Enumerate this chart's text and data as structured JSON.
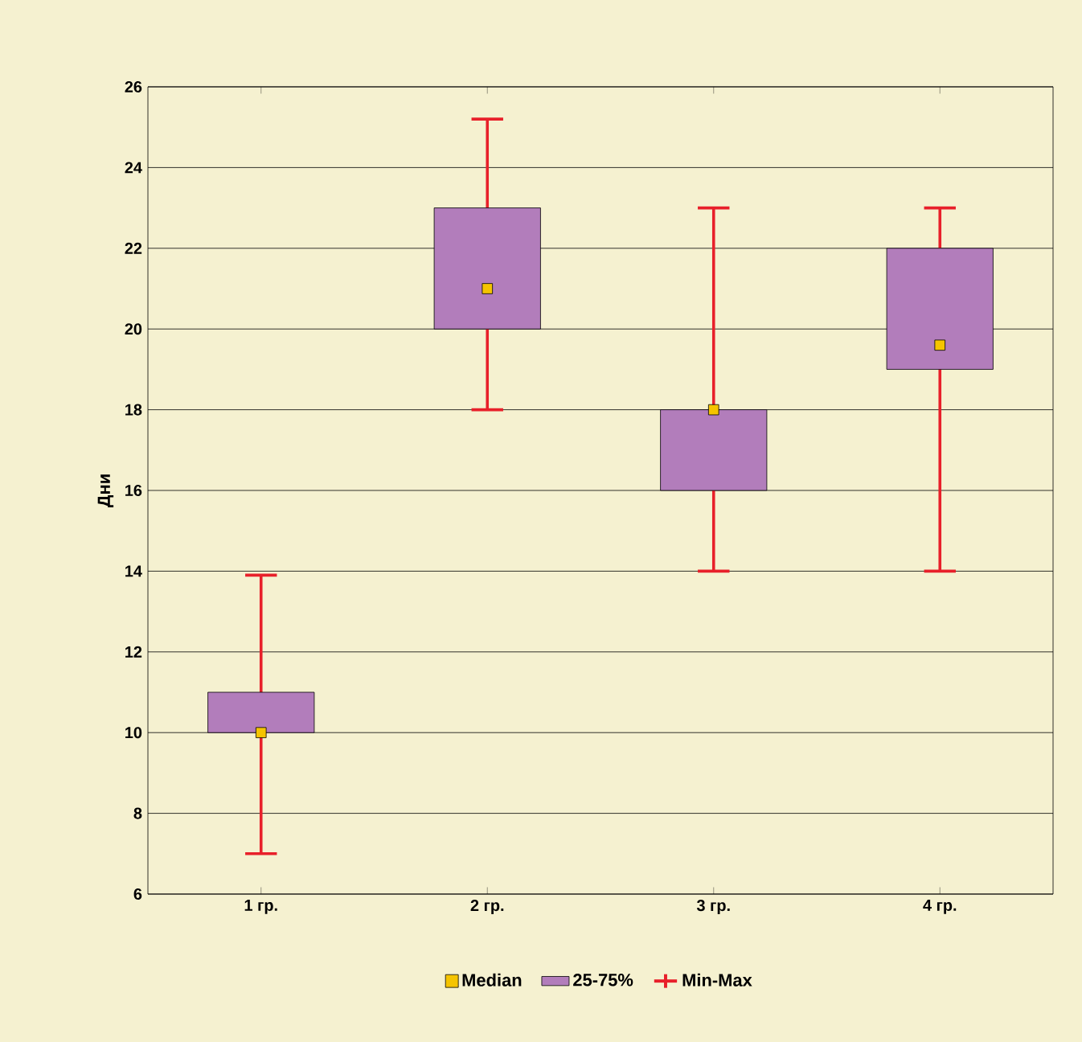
{
  "chart_data": {
    "type": "bar",
    "ylabel": "Дни",
    "categories": [
      "1 гр.",
      "2 гр.",
      "3 гр.",
      "4 гр."
    ],
    "ylim": [
      6,
      26
    ],
    "yticks": [
      6,
      8,
      10,
      12,
      14,
      16,
      18,
      20,
      22,
      24,
      26
    ],
    "grid": "y",
    "legend": "bottom",
    "annotations": [
      "Min-Max"
    ],
    "series": [
      {
        "name": "Median",
        "type": "scatter",
        "marker": "square",
        "color": "#f5c400",
        "values": [
          10,
          21,
          18,
          19.6
        ],
        "errors": [
          [
            7,
            13.9
          ],
          [
            18,
            25.2
          ],
          [
            14,
            23
          ],
          [
            14,
            23
          ]
        ]
      },
      {
        "name": "25-75%",
        "type": "bar",
        "color": "#b27dbb",
        "base": [
          10,
          20,
          16,
          19
        ],
        "values": [
          1,
          3,
          2,
          3
        ]
      }
    ]
  }
}
